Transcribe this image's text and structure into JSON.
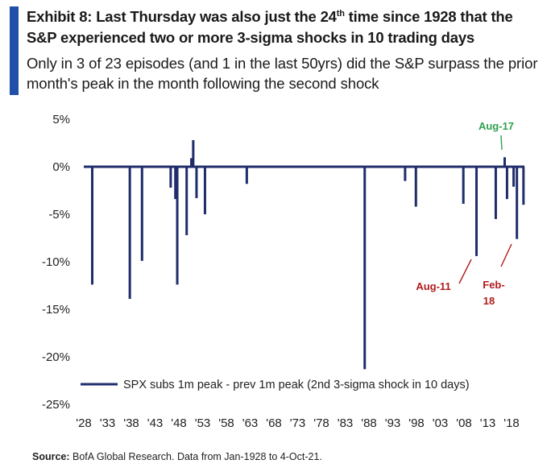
{
  "header": {
    "title_part1": "Exhibit 8: Last Thursday was also just the 24",
    "title_sup": "th",
    "title_part2": " time since 1928 that the S&P experienced two or more 3-sigma shocks in 10 trading days",
    "subtitle": "Only in 3 of 23 episodes (and 1 in the last 50yrs) did the S&P surpass the prior month's peak in the month following the second shock"
  },
  "colors": {
    "series": "#1f2d6b",
    "accent_bar": "#1f4fa8",
    "annot_red": "#b01c1c",
    "annot_green": "#2ea04f"
  },
  "chart_data": {
    "type": "bar",
    "title": "",
    "xlabel": "",
    "ylabel": "",
    "ylim": [
      -25,
      5
    ],
    "y_ticks": [
      5,
      0,
      -5,
      -10,
      -15,
      -20,
      -25
    ],
    "y_tick_labels": [
      "5%",
      "0%",
      "-5%",
      "-10%",
      "-15%",
      "-20%",
      "-25%"
    ],
    "x_range": [
      1928,
      2021.8
    ],
    "x_tick_labels": [
      "'28",
      "'33",
      "'38",
      "'43",
      "'48",
      "'53",
      "'58",
      "'63",
      "'68",
      "'73",
      "'78",
      "'83",
      "'88",
      "'93",
      "'98",
      "'03",
      "'08",
      "'13",
      "'18"
    ],
    "grid": false,
    "legend_position": "bottom-left",
    "series": [
      {
        "name": "SPX subs 1m peak - prev 1m peak (2nd 3-sigma shock in 10 days)",
        "points": [
          {
            "x": 1929.8,
            "y": -12.4
          },
          {
            "x": 1937.8,
            "y": -13.9
          },
          {
            "x": 1940.4,
            "y": -9.9
          },
          {
            "x": 1946.5,
            "y": -2.2
          },
          {
            "x": 1947.5,
            "y": -3.4
          },
          {
            "x": 1947.9,
            "y": -12.4
          },
          {
            "x": 1949.9,
            "y": -7.2
          },
          {
            "x": 1950.9,
            "y": 0.9
          },
          {
            "x": 1951.3,
            "y": 2.8
          },
          {
            "x": 1952.0,
            "y": -3.3
          },
          {
            "x": 1953.8,
            "y": -5.0
          },
          {
            "x": 1962.7,
            "y": -1.8
          },
          {
            "x": 1987.8,
            "y": -21.3
          },
          {
            "x": 1996.4,
            "y": -1.5
          },
          {
            "x": 1998.7,
            "y": -4.2
          },
          {
            "x": 2008.8,
            "y": -3.9
          },
          {
            "x": 2011.6,
            "y": -9.4
          },
          {
            "x": 2015.7,
            "y": -5.5
          },
          {
            "x": 2017.6,
            "y": 1.0
          },
          {
            "x": 2018.1,
            "y": -3.4
          },
          {
            "x": 2019.5,
            "y": -2.1
          },
          {
            "x": 2020.2,
            "y": -7.6
          },
          {
            "x": 2021.6,
            "y": -4.0
          }
        ]
      }
    ],
    "annotations": [
      {
        "text": "Aug-17",
        "color": "green",
        "x": 2017.6
      },
      {
        "text": "Aug-11",
        "color": "red",
        "x": 2011.6
      },
      {
        "text_line1": "Feb-",
        "text_line2": "18",
        "color": "red",
        "x": 2018.1
      }
    ]
  },
  "footer": {
    "source_label": "Source:",
    "source_text": " BofA Global Research. Data from Jan-1928 to 4-Oct-21."
  }
}
